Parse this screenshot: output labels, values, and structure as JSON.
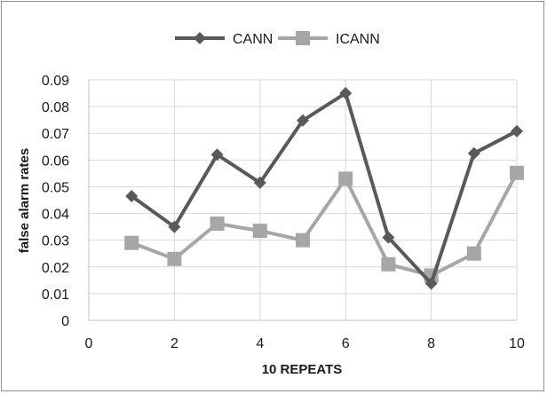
{
  "chart_data": {
    "type": "line",
    "title": "",
    "xlabel": "10 REPEATS",
    "ylabel": "false alarm rates",
    "xlim": [
      0,
      10
    ],
    "ylim": [
      0,
      0.09
    ],
    "x_ticks": [
      "0",
      "2",
      "4",
      "6",
      "8",
      "10"
    ],
    "y_ticks": [
      "0",
      "0.01",
      "0.02",
      "0.03",
      "0.04",
      "0.05",
      "0.06",
      "0.07",
      "0.08",
      "0.09"
    ],
    "grid": true,
    "legend_position": "top",
    "series": [
      {
        "name": "CANN",
        "color": "#595959",
        "marker": "diamond",
        "x": [
          1,
          2,
          3,
          4,
          5,
          6,
          7,
          8,
          9,
          10
        ],
        "values": [
          0.0465,
          0.035,
          0.062,
          0.0515,
          0.0748,
          0.085,
          0.031,
          0.0138,
          0.0625,
          0.0708
        ]
      },
      {
        "name": "ICANN",
        "color": "#a6a6a6",
        "marker": "square",
        "x": [
          1,
          2,
          3,
          4,
          5,
          6,
          7,
          8,
          9,
          10
        ],
        "values": [
          0.029,
          0.023,
          0.0362,
          0.0335,
          0.03,
          0.053,
          0.021,
          0.0168,
          0.025,
          0.0552
        ]
      }
    ]
  }
}
